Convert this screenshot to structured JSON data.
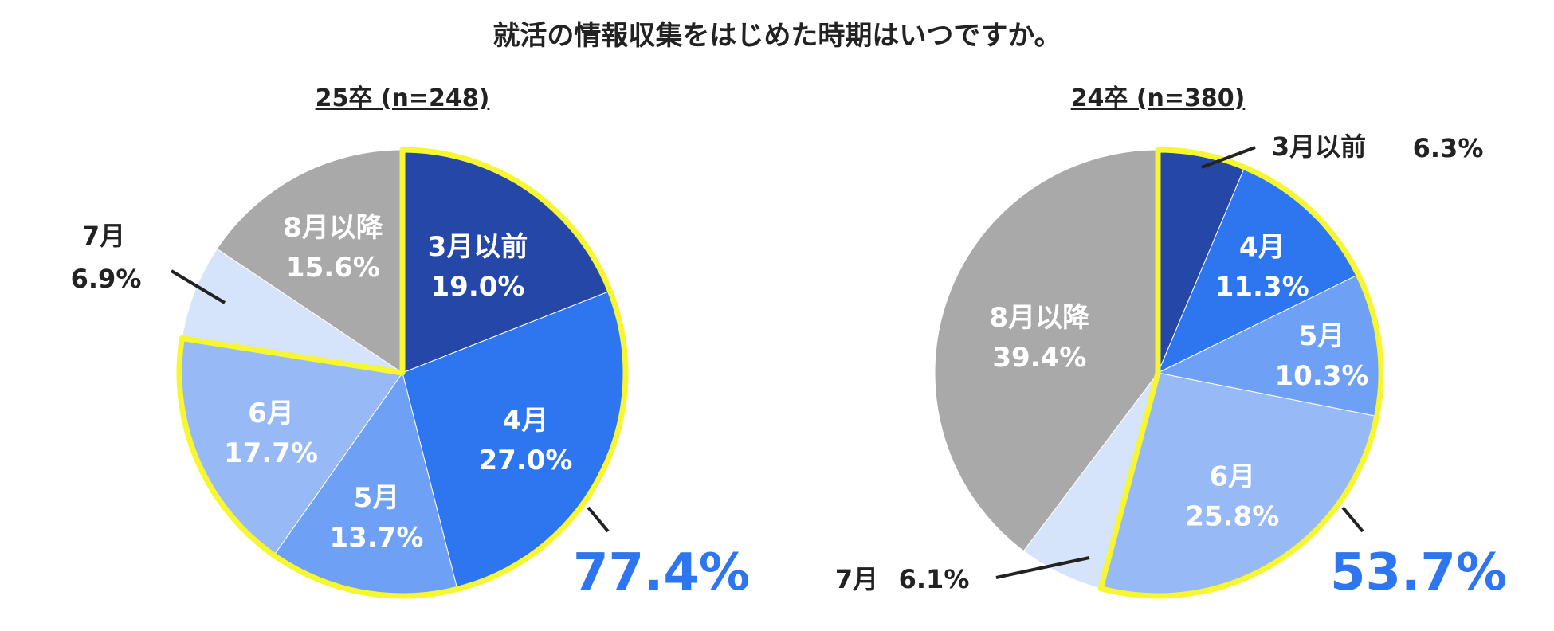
{
  "chart_data": {
    "type": "pie",
    "title": "就活の情報収集をはじめた時期はいつですか。",
    "colors": {
      "dark_blue": "#2447a8",
      "blue": "#2e75f0",
      "mid_blue": "#6ea0f5",
      "light_blue": "#97baf7",
      "pale_blue": "#d5e3fb",
      "gray": "#a9a9a9",
      "highlight": "#f6f730",
      "accent_text": "#2e75f0"
    },
    "charts": [
      {
        "subtitle": "25卒 (n=248)",
        "highlight_total": "77.4%",
        "highlight_range": [
          0,
          3
        ],
        "slices": [
          {
            "label": "3月以前",
            "value": 19.0,
            "display": "19.0%",
            "color": "#2447a8",
            "outside": false
          },
          {
            "label": "4月",
            "value": 27.0,
            "display": "27.0%",
            "color": "#2e75f0",
            "outside": false
          },
          {
            "label": "5月",
            "value": 13.7,
            "display": "13.7%",
            "color": "#6ea0f5",
            "outside": false
          },
          {
            "label": "6月",
            "value": 17.7,
            "display": "17.7%",
            "color": "#97baf7",
            "outside": false
          },
          {
            "label": "7月",
            "value": 6.9,
            "display": "6.9%",
            "color": "#d5e3fb",
            "outside": true
          },
          {
            "label": "8月以降",
            "value": 15.6,
            "display": "15.6%",
            "color": "#a9a9a9",
            "outside": false
          }
        ]
      },
      {
        "subtitle": "24卒 (n=380)",
        "highlight_total": "53.7%",
        "highlight_range": [
          0,
          3
        ],
        "slices": [
          {
            "label": "3月以前",
            "value": 6.3,
            "display": "6.3%",
            "color": "#2447a8",
            "outside": true
          },
          {
            "label": "4月",
            "value": 11.3,
            "display": "11.3%",
            "color": "#2e75f0",
            "outside": false
          },
          {
            "label": "5月",
            "value": 10.3,
            "display": "10.3%",
            "color": "#6ea0f5",
            "outside": false
          },
          {
            "label": "6月",
            "value": 25.8,
            "display": "25.8%",
            "color": "#97baf7",
            "outside": false
          },
          {
            "label": "7月",
            "value": 6.1,
            "display": "6.1%",
            "color": "#d5e3fb",
            "outside": true
          },
          {
            "label": "8月以降",
            "value": 39.4,
            "display": "39.4%",
            "color": "#a9a9a9",
            "outside": false
          }
        ]
      }
    ]
  }
}
